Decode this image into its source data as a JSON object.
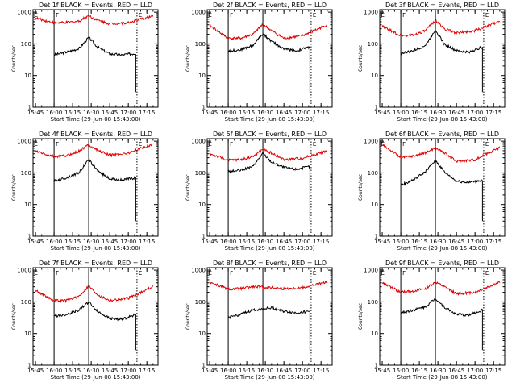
{
  "figure": {
    "y_label": "Counts/sec",
    "x_label": "Start Time (29-Jun-08 15:43:00)",
    "x_tick_labels": [
      "15:45",
      "16:00",
      "16:15",
      "16:30",
      "16:45",
      "17:00",
      "17:15"
    ],
    "y_tick_labels": [
      "1",
      "10",
      "100",
      "1000"
    ],
    "marker_letters": [
      "E",
      "F",
      "E"
    ]
  },
  "colors": {
    "events": "#000000",
    "lld": "#e00000",
    "axis": "#000000",
    "background": "#ffffff"
  },
  "chart_data": [
    {
      "type": "line",
      "title": "Det 1f BLACK = Events, RED = LLD",
      "xlabel": "Start Time (29-Jun-08 15:43:00)",
      "ylabel": "Counts/sec",
      "y_scale": "log",
      "ylim": [
        1,
        1200
      ],
      "series": [
        {
          "name": "Events",
          "color": "#000000",
          "x": [
            "16:00",
            "16:10",
            "16:20",
            "16:28",
            "16:35",
            "16:45",
            "16:55",
            "17:06"
          ],
          "values": [
            45,
            55,
            70,
            160,
            80,
            48,
            45,
            50
          ]
        },
        {
          "name": "LLD",
          "color": "#e00000",
          "x": [
            "15:45",
            "16:00",
            "16:10",
            "16:20",
            "16:28",
            "16:35",
            "16:45",
            "17:00",
            "17:20"
          ],
          "values": [
            650,
            460,
            470,
            520,
            780,
            560,
            430,
            470,
            760
          ]
        }
      ]
    },
    {
      "type": "line",
      "title": "Det 2f BLACK = Events, RED = LLD",
      "xlabel": "Start Time (29-Jun-08 15:43:00)",
      "ylabel": "Counts/sec",
      "y_scale": "log",
      "ylim": [
        1,
        1200
      ],
      "series": [
        {
          "name": "Events",
          "color": "#000000",
          "x": [
            "16:00",
            "16:10",
            "16:20",
            "16:28",
            "16:35",
            "16:45",
            "16:55",
            "17:06"
          ],
          "values": [
            60,
            65,
            90,
            210,
            120,
            70,
            60,
            80
          ]
        },
        {
          "name": "LLD",
          "color": "#e00000",
          "x": [
            "15:45",
            "16:00",
            "16:10",
            "16:20",
            "16:28",
            "16:35",
            "16:45",
            "17:00",
            "17:20"
          ],
          "values": [
            380,
            150,
            150,
            200,
            420,
            260,
            150,
            180,
            400
          ]
        }
      ]
    },
    {
      "type": "line",
      "title": "Det 3f BLACK = Events, RED = LLD",
      "xlabel": "Start Time (29-Jun-08 15:43:00)",
      "ylabel": "Counts/sec",
      "y_scale": "log",
      "ylim": [
        1,
        1200
      ],
      "series": [
        {
          "name": "Events",
          "color": "#000000",
          "x": [
            "16:00",
            "16:10",
            "16:20",
            "16:28",
            "16:35",
            "16:45",
            "16:55",
            "17:06"
          ],
          "values": [
            50,
            60,
            90,
            280,
            100,
            60,
            55,
            80
          ]
        },
        {
          "name": "LLD",
          "color": "#e00000",
          "x": [
            "15:45",
            "16:00",
            "16:10",
            "16:20",
            "16:28",
            "16:35",
            "16:45",
            "17:00",
            "17:20"
          ],
          "values": [
            360,
            180,
            190,
            260,
            560,
            300,
            220,
            260,
            520
          ]
        }
      ]
    },
    {
      "type": "line",
      "title": "Det 4f BLACK = Events, RED = LLD",
      "xlabel": "Start Time (29-Jun-08 15:43:00)",
      "ylabel": "Counts/sec",
      "y_scale": "log",
      "ylim": [
        1,
        1200
      ],
      "series": [
        {
          "name": "Events",
          "color": "#000000",
          "x": [
            "16:00",
            "16:10",
            "16:20",
            "16:28",
            "16:35",
            "16:45",
            "16:55",
            "17:06"
          ],
          "values": [
            55,
            70,
            100,
            260,
            120,
            65,
            60,
            70
          ]
        },
        {
          "name": "LLD",
          "color": "#e00000",
          "x": [
            "15:45",
            "16:00",
            "16:10",
            "16:20",
            "16:28",
            "16:35",
            "16:45",
            "17:00",
            "17:20"
          ],
          "values": [
            480,
            320,
            350,
            480,
            780,
            520,
            360,
            420,
            820
          ]
        }
      ]
    },
    {
      "type": "line",
      "title": "Det 5f BLACK = Events, RED = LLD",
      "xlabel": "Start Time (29-Jun-08 15:43:00)",
      "ylabel": "Counts/sec",
      "y_scale": "log",
      "ylim": [
        1,
        1200
      ],
      "series": [
        {
          "name": "Events",
          "color": "#000000",
          "x": [
            "16:00",
            "16:10",
            "16:20",
            "16:28",
            "16:35",
            "16:45",
            "16:55",
            "17:06"
          ],
          "values": [
            110,
            120,
            160,
            420,
            220,
            150,
            130,
            160
          ]
        },
        {
          "name": "LLD",
          "color": "#e00000",
          "x": [
            "15:45",
            "16:00",
            "16:10",
            "16:20",
            "16:28",
            "16:35",
            "16:45",
            "17:00",
            "17:20"
          ],
          "values": [
            400,
            250,
            260,
            330,
            560,
            420,
            260,
            290,
            500
          ]
        }
      ]
    },
    {
      "type": "line",
      "title": "Det 6f BLACK = Events, RED = LLD",
      "xlabel": "Start Time (29-Jun-08 15:43:00)",
      "ylabel": "Counts/sec",
      "y_scale": "log",
      "ylim": [
        1,
        1200
      ],
      "series": [
        {
          "name": "Events",
          "color": "#000000",
          "x": [
            "16:00",
            "16:10",
            "16:20",
            "16:28",
            "16:35",
            "16:45",
            "16:55",
            "17:06"
          ],
          "values": [
            40,
            60,
            110,
            250,
            110,
            55,
            50,
            60
          ]
        },
        {
          "name": "LLD",
          "color": "#e00000",
          "x": [
            "15:45",
            "16:00",
            "16:10",
            "16:20",
            "16:28",
            "16:35",
            "16:45",
            "17:00",
            "17:20"
          ],
          "values": [
            800,
            300,
            340,
            430,
            620,
            430,
            230,
            260,
            640
          ]
        }
      ]
    },
    {
      "type": "line",
      "title": "Det 7f BLACK = Events, RED = LLD",
      "xlabel": "Start Time (29-Jun-08 15:43:00)",
      "ylabel": "Counts/sec",
      "y_scale": "log",
      "ylim": [
        1,
        1200
      ],
      "series": [
        {
          "name": "Events",
          "color": "#000000",
          "x": [
            "16:00",
            "16:10",
            "16:20",
            "16:28",
            "16:35",
            "16:45",
            "16:55",
            "17:06"
          ],
          "values": [
            35,
            40,
            55,
            100,
            50,
            30,
            28,
            40
          ]
        },
        {
          "name": "LLD",
          "color": "#e00000",
          "x": [
            "15:45",
            "16:00",
            "16:10",
            "16:20",
            "16:28",
            "16:35",
            "16:45",
            "17:00",
            "17:20"
          ],
          "values": [
            230,
            110,
            110,
            150,
            320,
            170,
            110,
            130,
            300
          ]
        }
      ]
    },
    {
      "type": "line",
      "title": "Det 8f BLACK = Events, RED = LLD",
      "xlabel": "Start Time (29-Jun-08 15:43:00)",
      "ylabel": "Counts/sec",
      "y_scale": "log",
      "ylim": [
        1,
        1200
      ],
      "series": [
        {
          "name": "Events",
          "color": "#000000",
          "x": [
            "16:00",
            "16:10",
            "16:20",
            "16:35",
            "16:45",
            "16:55",
            "17:06"
          ],
          "values": [
            32,
            40,
            55,
            65,
            50,
            45,
            50
          ]
        },
        {
          "name": "LLD",
          "color": "#e00000",
          "x": [
            "15:45",
            "16:00",
            "16:10",
            "16:20",
            "16:35",
            "16:45",
            "17:00",
            "17:20"
          ],
          "values": [
            420,
            250,
            260,
            300,
            280,
            260,
            280,
            420
          ]
        }
      ]
    },
    {
      "type": "line",
      "title": "Det 9f BLACK = Events, RED = LLD",
      "xlabel": "Start Time (29-Jun-08 15:43:00)",
      "ylabel": "Counts/sec",
      "y_scale": "log",
      "ylim": [
        1,
        1200
      ],
      "series": [
        {
          "name": "Events",
          "color": "#000000",
          "x": [
            "16:00",
            "16:10",
            "16:20",
            "16:28",
            "16:35",
            "16:45",
            "16:55",
            "17:06"
          ],
          "values": [
            45,
            55,
            70,
            130,
            70,
            40,
            38,
            55
          ]
        },
        {
          "name": "LLD",
          "color": "#e00000",
          "x": [
            "15:45",
            "16:00",
            "16:10",
            "16:20",
            "16:28",
            "16:35",
            "16:45",
            "17:00",
            "17:20"
          ],
          "values": [
            400,
            200,
            220,
            260,
            420,
            300,
            180,
            200,
            420
          ]
        }
      ]
    }
  ]
}
